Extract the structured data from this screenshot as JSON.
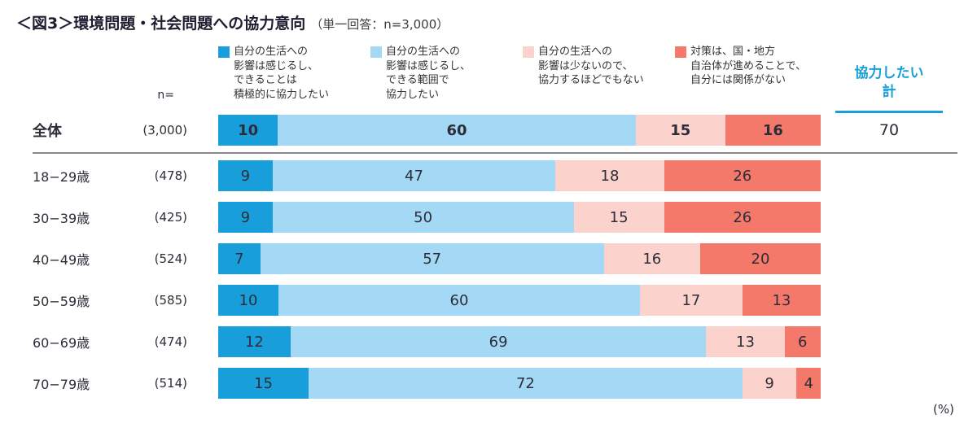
{
  "title": {
    "main": "＜図3＞環境問題・社会問題への協力意向",
    "sub": "（単一回答：n=3,000）"
  },
  "colors": {
    "accent_blue": "#189fdb",
    "light_blue": "#a3d9f5",
    "light_pink": "#fbd2cc",
    "salmon": "#f4796b",
    "value_text": "#2d2d3a",
    "separator": "#8a8a8a"
  },
  "legend": [
    {
      "label": "自分の生活への\n影響は感じるし、\nできることは\n積極的に協力したい",
      "color": "#189fdb"
    },
    {
      "label": "自分の生活への\n影響は感じるし、\nできる範囲で\n協力したい",
      "color": "#a3d9f5"
    },
    {
      "label": "自分の生活への\n影響は少ないので、\n協力するほどでもない",
      "color": "#fbd2cc"
    },
    {
      "label": "対策は、国・地方\n自治体が進めることで、\n自分には関係がない",
      "color": "#f4796b"
    }
  ],
  "headers": {
    "n_label": "n=",
    "cooperation_total": "協力したい\n計"
  },
  "footer": {
    "percent_label": "(%)"
  },
  "chart_data": {
    "type": "bar",
    "stacked": true,
    "orientation": "horizontal",
    "unit": "%",
    "title": "＜図3＞環境問題・社会問題への協力意向（単一回答：n=3,000）",
    "categories": [
      "全体",
      "18−29歳",
      "30−39歳",
      "40−49歳",
      "50−59歳",
      "60−69歳",
      "70−79歳"
    ],
    "n_values": [
      "(3,000)",
      "(478)",
      "(425)",
      "(524)",
      "(585)",
      "(474)",
      "(514)"
    ],
    "series": [
      {
        "name": "自分の生活への影響は感じるし、できることは積極的に協力したい",
        "values": [
          10,
          9,
          9,
          7,
          10,
          12,
          15
        ]
      },
      {
        "name": "自分の生活への影響は感じるし、できる範囲で協力したい",
        "values": [
          60,
          47,
          50,
          57,
          60,
          69,
          72
        ]
      },
      {
        "name": "自分の生活への影響は少ないので、協力するほどでもない",
        "values": [
          15,
          18,
          15,
          16,
          17,
          13,
          9
        ]
      },
      {
        "name": "対策は、国・地方自治体が進めることで、自分には関係がない",
        "values": [
          16,
          26,
          26,
          20,
          13,
          6,
          4
        ]
      }
    ],
    "cooperation_total": [
      70,
      null,
      null,
      null,
      null,
      null,
      null
    ],
    "xlim": [
      0,
      100
    ],
    "legend_position": "top"
  }
}
